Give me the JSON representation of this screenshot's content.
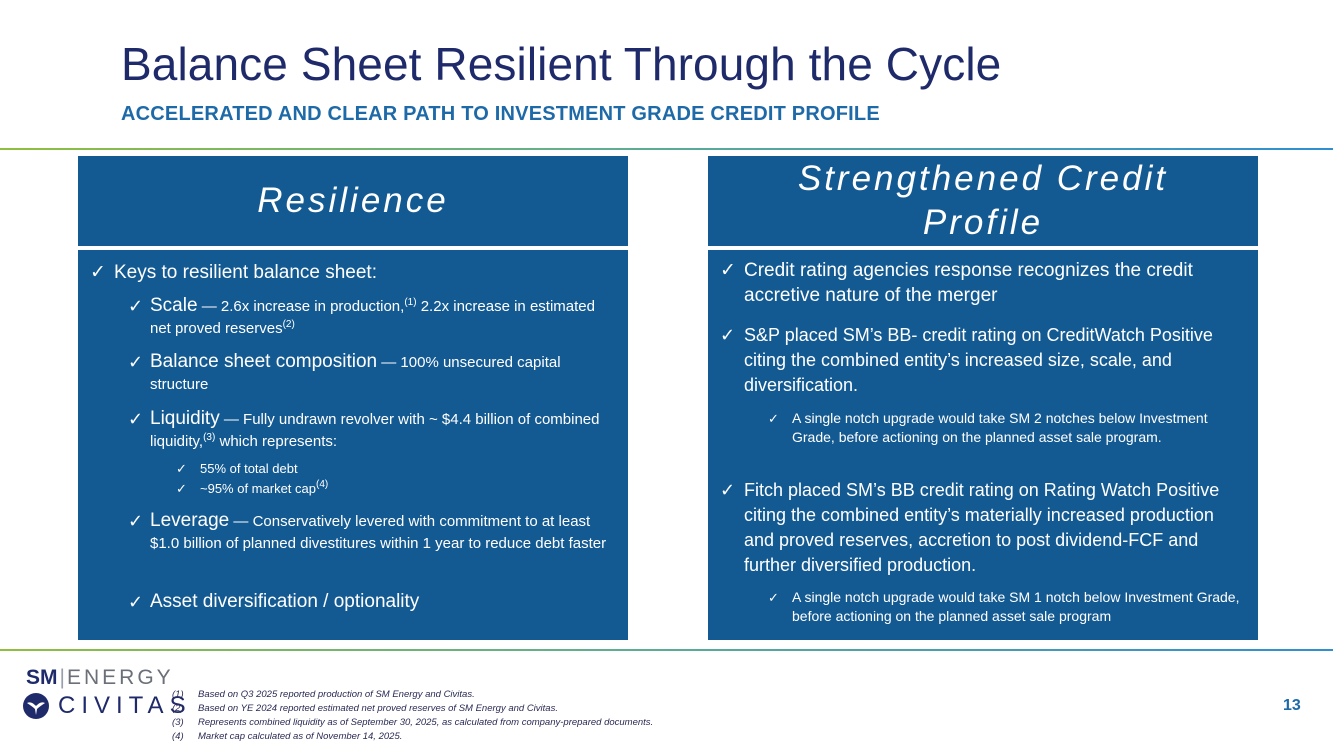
{
  "title": "Balance Sheet Resilient Through the Cycle",
  "subtitle": "ACCELERATED AND CLEAR PATH TO INVESTMENT GRADE CREDIT PROFILE",
  "left_panel": {
    "heading": "Resilience",
    "check": "✓",
    "intro": "Keys to resilient balance sheet:",
    "scale": {
      "lead": "Scale",
      "text1": " — 2.6x increase in production,",
      "sup1": "(1)",
      "text2": " 2.2x increase in estimated net proved reserves",
      "sup2": "(2)"
    },
    "composition": {
      "lead": "Balance sheet composition",
      "text": " — 100% unsecured capital structure"
    },
    "liquidity": {
      "lead": "Liquidity",
      "text1": " — Fully undrawn revolver with ~ $4.4 billion of combined liquidity,",
      "sup": "(3)",
      "text2": " which represents:",
      "sub1": "55% of total debt",
      "sub2": "~95% of market cap",
      "sub2_sup": "(4)"
    },
    "leverage": {
      "lead": "Leverage",
      "text": " — Conservatively levered with commitment to at least $1.0 billion of planned divestitures within 1 year to reduce debt faster"
    },
    "diversification": "Asset diversification / optionality"
  },
  "right_panel": {
    "heading_line1": "Strengthened Credit",
    "heading_line2": "Profile",
    "item1": "Credit rating agencies response recognizes the credit accretive nature of the merger",
    "item2": "S&P placed SM’s BB- credit rating on CreditWatch Positive citing the combined entity’s increased size, scale, and diversification.",
    "item2_sub": "A single notch upgrade would take SM 2 notches below Investment Grade, before actioning on the planned asset sale program.",
    "item3": "Fitch placed SM’s BB credit rating on Rating Watch Positive citing  the combined entity’s materially increased production and proved reserves, accretion to post dividend-FCF and further diversified production.",
    "item3_sub": "A single notch upgrade would take SM 1 notch below Investment Grade, before actioning on the planned asset sale program"
  },
  "logos": {
    "sm": "SM",
    "energy": "ENERGY",
    "civitas": "CIVITAS"
  },
  "footnotes": [
    {
      "num": "(1)",
      "text": "Based on Q3 2025 reported production of SM Energy and Civitas."
    },
    {
      "num": "(2)",
      "text": "Based on YE 2024 reported estimated net proved reserves of SM Energy and Civitas."
    },
    {
      "num": "(3)",
      "text": "Represents combined liquidity as of September 30, 2025, as calculated from company-prepared documents."
    },
    {
      "num": "(4)",
      "text": "Market cap calculated as of November 14, 2025."
    }
  ],
  "page_number": "13",
  "colors": {
    "title": "#1f2a6b",
    "accent": "#1e6aa8",
    "panel": "#145a92"
  }
}
